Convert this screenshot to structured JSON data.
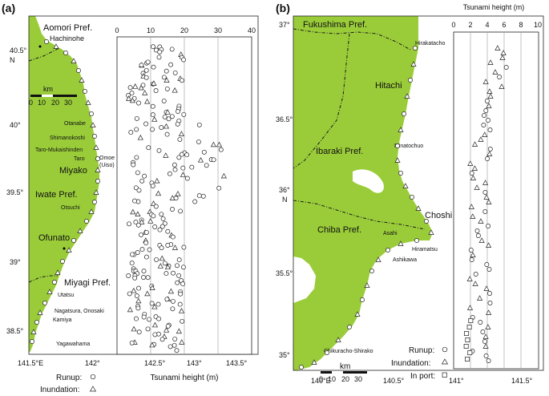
{
  "panel_a": {
    "panel_label": "(a)",
    "places": {
      "aomori": "Aomori Pref.",
      "hachinohe": "Hachinohe",
      "otanabe": "Otanabe",
      "shimanokoshi": "Shimanokoshi",
      "taro_mukai": "Taro-Mukaishinden",
      "taro": "Taro",
      "omoe": "Omoe",
      "uiso": "(Uiso)",
      "miyako": "Miyako",
      "iwate": "Iwate Pref.",
      "otsuchi": "Otsuchi",
      "ofunato": "Ofunato",
      "miyagi": "Miyagi Pref.",
      "utatsu": "Utatsu",
      "nagatsura": "Nagatsura, Onosaki",
      "kamiya": "Kamiya",
      "yagawahama": "Yagawahama"
    },
    "lat_labels": [
      "40.5°",
      "40°",
      "39.5°",
      "39°",
      "38.5°"
    ],
    "lat_unit": "N",
    "lon_labels": [
      "141.5°E",
      "142°",
      "142.5°",
      "143°",
      "143.5°"
    ],
    "scale_title": "km",
    "scale_ticks": [
      "0",
      "10",
      "20",
      "30"
    ],
    "height_ticks": [
      "0",
      "10",
      "20",
      "30",
      "40"
    ],
    "height_axis_title": "Tsunami height (m)",
    "legend_runup": "Runup:",
    "legend_inundation": "Inundation:"
  },
  "panel_b": {
    "panel_label": "(b)",
    "places": {
      "fukushima": "Fukushima Pref.",
      "hirakata": "Hirakatacho",
      "hitachi": "Hitachi",
      "ibaraki": "Ibaraki Pref.",
      "minato": "Minatochuo",
      "choshi": "Choshi",
      "chiba": "Chiba Pref.",
      "asahi": "Asahi",
      "hiramatsu": "Hiramatsu",
      "ashikawa": "Ashikawa",
      "chikura": "Chikuracho-Shirako"
    },
    "lat_labels": [
      "37°",
      "36.5°",
      "36°",
      "35.5°",
      "35°"
    ],
    "lat_unit": "N",
    "lon_labels": [
      "140°E",
      "140.5°",
      "141°",
      "141.5°"
    ],
    "scale_title": "km",
    "scale_ticks": [
      "0",
      "10",
      "20",
      "30"
    ],
    "height_axis_title": "Tsunami height (m)",
    "height_ticks": [
      "0",
      "2",
      "4",
      "6",
      "8",
      "10"
    ],
    "legend_runup": "Runup:",
    "legend_inundation": "Inundation:",
    "legend_inport": "In port:"
  }
}
